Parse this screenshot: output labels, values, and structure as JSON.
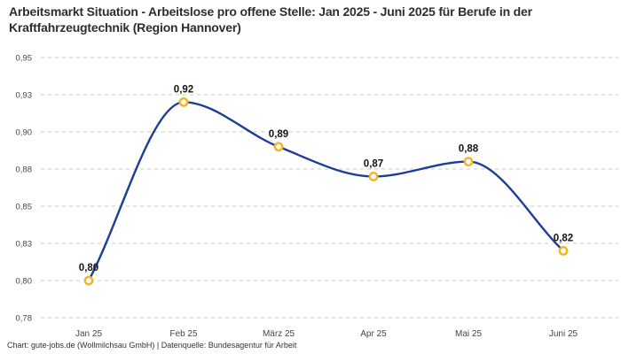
{
  "title": "Arbeitsmarkt Situation - Arbeitslose pro offene Stelle: Jan 2025 - Juni 2025 für Berufe in der Kraftfahrzeugtechnik (Region Hannover)",
  "footer": "Chart: gute-jobs.de (Wollmilchsau GmbH) | Datenquelle: Bundesagentur für Arbeit",
  "chart_data": {
    "type": "line",
    "title": "Arbeitsmarkt Situation - Arbeitslose pro offene Stelle: Jan 2025 - Juni 2025 für Berufe in der Kraftfahrzeugtechnik (Region Hannover)",
    "categories": [
      "Jan 25",
      "Feb 25",
      "März 25",
      "Apr 25",
      "Mai 25",
      "Juni 25"
    ],
    "values": [
      0.8,
      0.92,
      0.89,
      0.87,
      0.88,
      0.82
    ],
    "point_labels": [
      "0,80",
      "0,92",
      "0,89",
      "0,87",
      "0,88",
      "0,82"
    ],
    "xlabel": "",
    "ylabel": "",
    "ylim": [
      0.775,
      0.95
    ],
    "y_ticks": [
      0.95,
      0.925,
      0.9,
      0.875,
      0.85,
      0.825,
      0.8,
      0.775
    ],
    "y_tick_labels": [
      "0,95",
      "0,93",
      "0,90",
      "0,88",
      "0,85",
      "0,83",
      "0,80",
      "0,78"
    ],
    "grid": "horizontal-dashed",
    "legend": "none",
    "curve": "monotone",
    "colors": {
      "line": "#1e3d98",
      "marker_ring": "#f5b41e",
      "marker_fill": "#ffffff",
      "grid": "#cbcbcb",
      "axis_text": "#45454c",
      "value_label": "#141414",
      "title_text": "#2e2e2e"
    }
  }
}
